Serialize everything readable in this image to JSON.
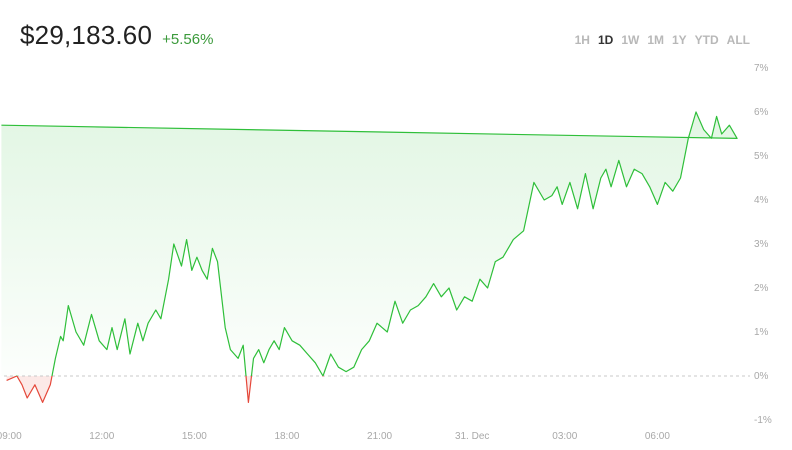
{
  "header": {
    "price": "$29,183.60",
    "change": "+5.56%"
  },
  "ranges": [
    {
      "label": "1H",
      "active": false
    },
    {
      "label": "1D",
      "active": true
    },
    {
      "label": "1W",
      "active": false
    },
    {
      "label": "1M",
      "active": false
    },
    {
      "label": "1Y",
      "active": false
    },
    {
      "label": "YTD",
      "active": false
    },
    {
      "label": "ALL",
      "active": false
    }
  ],
  "colors": {
    "positive": "#2fbf3a",
    "negative": "#e5483a",
    "zero_line": "#c8c8c8"
  },
  "chart_data": {
    "type": "area",
    "title": "",
    "xlabel": "",
    "ylabel": "",
    "y_unit": "%",
    "ylim": [
      -1,
      7
    ],
    "y_ticks": [
      "-1%",
      "0%",
      "1%",
      "2%",
      "3%",
      "4%",
      "5%",
      "6%",
      "7%"
    ],
    "x_ticks": [
      "09:00",
      "12:00",
      "15:00",
      "18:00",
      "21:00",
      "31. Dec",
      "03:00",
      "06:00"
    ],
    "xlim": [
      "09:00",
      "09:00"
    ],
    "grid": false,
    "baseline": 0,
    "series": [
      {
        "x": [
          "08:55",
          "09:15",
          "09:25",
          "09:35",
          "09:50",
          "10:05",
          "10:20",
          "10:30",
          "10:40",
          "10:45",
          "10:55",
          "11:10",
          "11:25",
          "11:40",
          "11:55",
          "12:10",
          "12:20",
          "12:30",
          "12:45",
          "12:55",
          "13:10",
          "13:20",
          "13:30",
          "13:45",
          "13:55",
          "14:10",
          "14:20",
          "14:35",
          "14:45",
          "14:55",
          "15:05",
          "15:15",
          "15:25",
          "15:35",
          "15:45",
          "16:00",
          "16:10",
          "16:25",
          "16:35",
          "16:45",
          "16:55",
          "17:05",
          "17:15",
          "17:25",
          "17:35",
          "17:45",
          "17:55",
          "18:10",
          "18:25",
          "18:40",
          "18:55",
          "19:10",
          "19:25",
          "19:40",
          "19:55",
          "20:10",
          "20:25",
          "20:40",
          "20:55",
          "21:15",
          "21:30",
          "21:45",
          "22:00",
          "22:15",
          "22:30",
          "22:45",
          "23:00",
          "23:15",
          "23:30",
          "23:45",
          "00:00",
          "00:15",
          "00:30",
          "00:45",
          "01:00",
          "01:20",
          "01:40",
          "02:00",
          "02:20",
          "02:35",
          "02:45",
          "02:55",
          "03:10",
          "03:25",
          "03:40",
          "03:55",
          "04:10",
          "04:20",
          "04:30",
          "04:45",
          "05:00",
          "05:15",
          "05:30",
          "05:45",
          "06:00",
          "06:15",
          "06:30",
          "06:45",
          "07:00",
          "07:15",
          "07:30",
          "07:45",
          "07:55",
          "08:05",
          "08:20",
          "08:35",
          "08:45"
        ],
        "y": [
          -0.1,
          0.0,
          -0.2,
          -0.5,
          -0.2,
          -0.6,
          -0.2,
          0.4,
          0.9,
          0.8,
          1.6,
          1.0,
          0.7,
          1.4,
          0.8,
          0.6,
          1.1,
          0.6,
          1.3,
          0.5,
          1.2,
          0.8,
          1.2,
          1.5,
          1.3,
          2.2,
          3.0,
          2.5,
          3.1,
          2.4,
          2.7,
          2.4,
          2.2,
          2.9,
          2.6,
          1.1,
          0.6,
          0.4,
          0.7,
          -0.6,
          0.4,
          0.6,
          0.3,
          0.6,
          0.8,
          0.6,
          1.1,
          0.8,
          0.7,
          0.5,
          0.3,
          0.0,
          0.5,
          0.2,
          0.1,
          0.2,
          0.6,
          0.8,
          1.2,
          1.0,
          1.7,
          1.2,
          1.5,
          1.6,
          1.8,
          2.1,
          1.8,
          2.0,
          1.5,
          1.8,
          1.7,
          2.2,
          2.0,
          2.6,
          2.7,
          3.1,
          3.3,
          4.4,
          4.0,
          4.1,
          4.3,
          3.9,
          4.4,
          3.8,
          4.6,
          3.8,
          4.5,
          4.7,
          4.3,
          4.9,
          4.3,
          4.7,
          4.6,
          4.3,
          3.9,
          4.4,
          4.2,
          4.5,
          5.4,
          6.0,
          5.6,
          5.4,
          5.9,
          5.5,
          5.7,
          5.4,
          5.7
        ]
      }
    ]
  }
}
